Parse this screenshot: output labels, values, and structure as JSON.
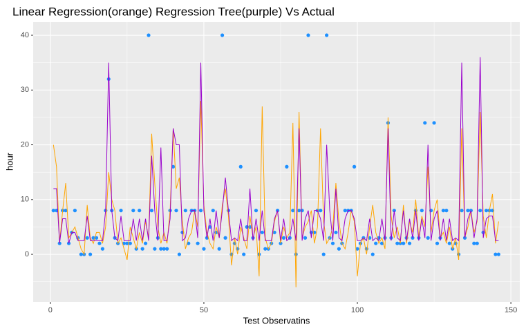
{
  "chart_data": {
    "type": "line",
    "title": "Linear Regression(orange) Regression Tree(purple) Vs Actual",
    "x_label": "Test Observatins",
    "y_label": "hour",
    "xlim": [
      -5.6,
      152.9
    ],
    "ylim": [
      -8.7,
      42.4
    ],
    "xticks": [
      0,
      50,
      100,
      150
    ],
    "yticks": [
      0,
      10,
      20,
      30,
      40
    ],
    "minor_xticks": [
      25,
      75,
      125
    ],
    "minor_yticks": [
      -5,
      5,
      15,
      25,
      35
    ],
    "grid": true,
    "x": [
      1,
      2,
      3,
      4,
      5,
      6,
      7,
      8,
      9,
      10,
      11,
      12,
      13,
      14,
      15,
      16,
      17,
      18,
      19,
      20,
      21,
      22,
      23,
      24,
      25,
      26,
      27,
      28,
      29,
      30,
      31,
      32,
      33,
      34,
      35,
      36,
      37,
      38,
      39,
      40,
      41,
      42,
      43,
      44,
      45,
      46,
      47,
      48,
      49,
      50,
      51,
      52,
      53,
      54,
      55,
      56,
      57,
      58,
      59,
      60,
      61,
      62,
      63,
      64,
      65,
      66,
      67,
      68,
      69,
      70,
      71,
      72,
      73,
      74,
      75,
      76,
      77,
      78,
      79,
      80,
      81,
      82,
      83,
      84,
      85,
      86,
      87,
      88,
      89,
      90,
      91,
      92,
      93,
      94,
      95,
      96,
      97,
      98,
      99,
      100,
      101,
      102,
      103,
      104,
      105,
      106,
      107,
      108,
      109,
      110,
      111,
      112,
      113,
      114,
      115,
      116,
      117,
      118,
      119,
      120,
      121,
      122,
      123,
      124,
      125,
      126,
      127,
      128,
      129,
      130,
      131,
      132,
      133,
      134,
      135,
      136,
      137,
      138,
      139,
      140,
      141,
      142,
      143,
      144,
      145,
      146
    ],
    "series": [
      {
        "type": "scatter",
        "color": "#1e90ff",
        "values": [
          8,
          8,
          2,
          8,
          8,
          2,
          4,
          8,
          3,
          0,
          0,
          3,
          0,
          3,
          3,
          2,
          1,
          8,
          32,
          8,
          3,
          2,
          8,
          2,
          2,
          2,
          8,
          1,
          8,
          1,
          2,
          40,
          8,
          1,
          3,
          1,
          1,
          1,
          8,
          16,
          8,
          0,
          4,
          8,
          2,
          8,
          8,
          2,
          8,
          1,
          3,
          5,
          8,
          4,
          1,
          40,
          3,
          8,
          0,
          2,
          1,
          16,
          0,
          5,
          5,
          3,
          8,
          0,
          4,
          1,
          1,
          2,
          4,
          8,
          2,
          3,
          16,
          3,
          8,
          0,
          8,
          8,
          3,
          40,
          4,
          4,
          8,
          8,
          0,
          40,
          3,
          2,
          4,
          1,
          2,
          8,
          8,
          8,
          16,
          1,
          2,
          3,
          1,
          3,
          0,
          2,
          3,
          2,
          3,
          24,
          3,
          8,
          2,
          2,
          2,
          3,
          2,
          3,
          8,
          3,
          8,
          24,
          3,
          8,
          24,
          2,
          3,
          8,
          8,
          2,
          1,
          2,
          0,
          8,
          3,
          8,
          8,
          2,
          2,
          8,
          4,
          8,
          8,
          8,
          0,
          0
        ]
      },
      {
        "type": "line",
        "color": "#ffa500",
        "values": [
          20,
          16,
          2,
          8,
          13,
          3,
          4,
          5,
          3,
          1,
          0,
          9,
          3,
          2,
          4,
          4,
          2,
          5,
          15,
          10,
          8,
          2,
          3,
          1,
          -1,
          5,
          3,
          1,
          4,
          2,
          6,
          3,
          22,
          13,
          5,
          2,
          4,
          2,
          8,
          23,
          12,
          14,
          6,
          1,
          3,
          4,
          8,
          5,
          28,
          9,
          4,
          2,
          1,
          5,
          3,
          9,
          12,
          7,
          -2,
          3,
          0,
          5,
          3,
          1,
          7,
          3,
          5,
          -4,
          27,
          3,
          1,
          2,
          6,
          8,
          2,
          5,
          3,
          4,
          24,
          -6,
          26,
          3,
          5,
          6,
          8,
          2,
          5,
          23,
          6,
          2,
          3,
          5,
          13,
          6,
          2,
          1,
          4,
          8,
          6,
          -4,
          2,
          3,
          0,
          5,
          9,
          4,
          2,
          3,
          1,
          25,
          7,
          3,
          5,
          2,
          9,
          2,
          6,
          4,
          10,
          3,
          7,
          5,
          16,
          4,
          8,
          10,
          3,
          4,
          2,
          5,
          1,
          3,
          -1,
          23,
          3,
          5,
          8,
          4,
          6,
          26,
          7,
          3,
          8,
          11,
          2,
          6
        ]
      },
      {
        "type": "line",
        "color": "#9900cc",
        "values": [
          12,
          12,
          2,
          6.5,
          6.5,
          2,
          4,
          4,
          2.5,
          2.5,
          2.5,
          7,
          2.5,
          2.5,
          2.5,
          2.5,
          2.5,
          8,
          35,
          8,
          3,
          2.5,
          7,
          2.5,
          2.5,
          2.5,
          6.5,
          2.5,
          6.5,
          2.5,
          6.5,
          2.5,
          18,
          8,
          2.5,
          19.5,
          2.5,
          2.5,
          6.5,
          23,
          20,
          20,
          2.5,
          3,
          6.5,
          8,
          8,
          3,
          35,
          8,
          3,
          6.5,
          2.5,
          8,
          3,
          8,
          14,
          8,
          2.5,
          3,
          2.5,
          6.5,
          2.5,
          2.5,
          12,
          2.5,
          6.5,
          2.5,
          8,
          2.5,
          2.5,
          2.5,
          6.5,
          8,
          2.5,
          6.5,
          2.5,
          3,
          6.5,
          2.5,
          23,
          2.5,
          6.5,
          8,
          3,
          8,
          8,
          6.5,
          2.5,
          20,
          8,
          2.5,
          12,
          3,
          2.5,
          6.5,
          8,
          8,
          6.5,
          2.5,
          2.5,
          3,
          2.5,
          6.5,
          2.5,
          3,
          2.5,
          6.5,
          2.5,
          23,
          2.5,
          8,
          3,
          2.5,
          8,
          2.5,
          6.5,
          3,
          8,
          2.5,
          6.5,
          3,
          20,
          2.5,
          6.5,
          8,
          2.5,
          6.5,
          2.5,
          6.5,
          2.5,
          3,
          2.5,
          35,
          3,
          6.5,
          8,
          3,
          6.5,
          36,
          3,
          6.5,
          7,
          7,
          2.5,
          2.5
        ]
      }
    ]
  }
}
